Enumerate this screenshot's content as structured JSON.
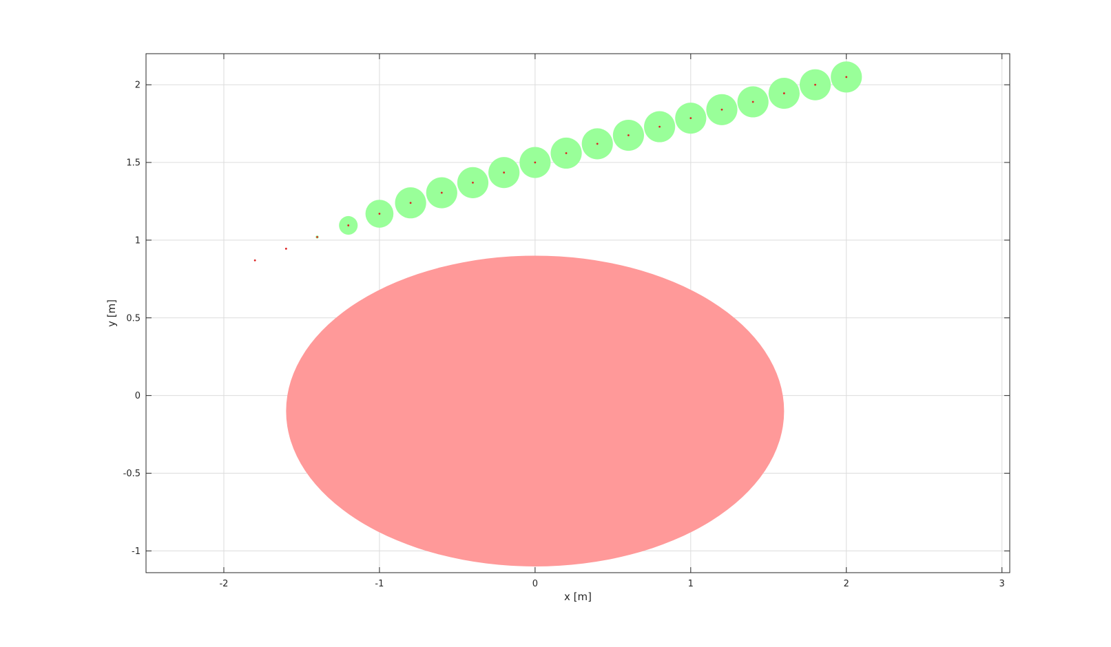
{
  "chart_data": {
    "type": "scatter",
    "title": "",
    "xlabel": "x [m]",
    "ylabel": "y [m]",
    "xlim": [
      -2.5,
      3.05
    ],
    "ylim": [
      -1.14,
      2.2
    ],
    "grid": true,
    "x_ticks": [
      -2,
      -1,
      0,
      1,
      2,
      3
    ],
    "y_ticks": [
      -1,
      -0.5,
      0,
      0.5,
      1,
      1.5,
      2
    ],
    "x_tick_labels": [
      "-2",
      "-1",
      "0",
      "1",
      "2",
      "3"
    ],
    "y_tick_labels": [
      "-1",
      "-0.5",
      "0",
      "0.5",
      "1",
      "1.5",
      "2"
    ],
    "obstacle": {
      "shape": "ellipse",
      "center": [
        0.0,
        -0.1
      ],
      "semi_axes": [
        1.6,
        1.0
      ],
      "color": "#ff9999"
    },
    "points": [
      {
        "x": -1.8,
        "y": 0.87,
        "r": 0.0
      },
      {
        "x": -1.6,
        "y": 0.945,
        "r": 0.0
      },
      {
        "x": -1.4,
        "y": 1.02,
        "r": 0.01
      },
      {
        "x": -1.2,
        "y": 1.095,
        "r": 0.06
      },
      {
        "x": -1.0,
        "y": 1.17,
        "r": 0.09
      },
      {
        "x": -0.8,
        "y": 1.24,
        "r": 0.1
      },
      {
        "x": -0.6,
        "y": 1.305,
        "r": 0.1
      },
      {
        "x": -0.4,
        "y": 1.37,
        "r": 0.1
      },
      {
        "x": -0.2,
        "y": 1.435,
        "r": 0.1
      },
      {
        "x": 0.0,
        "y": 1.5,
        "r": 0.1
      },
      {
        "x": 0.2,
        "y": 1.56,
        "r": 0.1
      },
      {
        "x": 0.4,
        "y": 1.62,
        "r": 0.1
      },
      {
        "x": 0.6,
        "y": 1.675,
        "r": 0.1
      },
      {
        "x": 0.8,
        "y": 1.73,
        "r": 0.1
      },
      {
        "x": 1.0,
        "y": 1.785,
        "r": 0.1
      },
      {
        "x": 1.2,
        "y": 1.84,
        "r": 0.1
      },
      {
        "x": 1.4,
        "y": 1.89,
        "r": 0.1
      },
      {
        "x": 1.6,
        "y": 1.945,
        "r": 0.1
      },
      {
        "x": 1.8,
        "y": 2.0,
        "r": 0.1
      },
      {
        "x": 2.0,
        "y": 2.05,
        "r": 0.1
      }
    ],
    "colors": {
      "circle_fill": "#99ff99",
      "center_point": "#dd2222",
      "grid": "#dcdcdc",
      "axes": "#262626"
    }
  }
}
